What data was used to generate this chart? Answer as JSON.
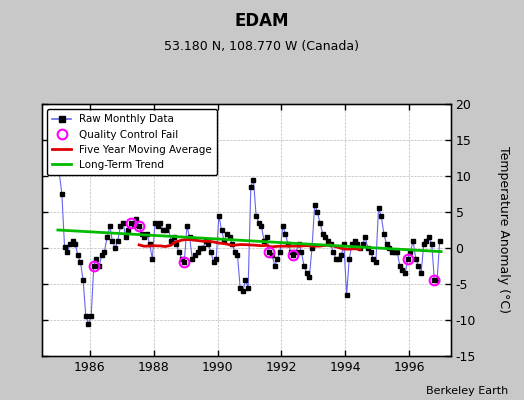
{
  "title": "EDAM",
  "subtitle": "53.180 N, 108.770 W (Canada)",
  "watermark": "Berkeley Earth",
  "ylabel": "Temperature Anomaly (°C)",
  "ylim": [
    -15,
    20
  ],
  "yticks": [
    -15,
    -10,
    -5,
    0,
    5,
    10,
    15,
    20
  ],
  "xlim": [
    1984.5,
    1997.3
  ],
  "xticks": [
    1986,
    1988,
    1990,
    1992,
    1994,
    1996
  ],
  "bg_color": "#c8c8c8",
  "plot_bg_color": "#ffffff",
  "raw_line_color": "#6666ee",
  "raw_dot_color": "#000000",
  "moving_avg_color": "#dd0000",
  "trend_color": "#00bb00",
  "qc_fail_color": "#ff00ff",
  "raw_monthly_data": [
    [
      1985.042,
      10.5
    ],
    [
      1985.125,
      7.5
    ],
    [
      1985.208,
      0.2
    ],
    [
      1985.292,
      -0.5
    ],
    [
      1985.375,
      0.5
    ],
    [
      1985.458,
      1.0
    ],
    [
      1985.542,
      0.5
    ],
    [
      1985.625,
      -1.0
    ],
    [
      1985.708,
      -2.0
    ],
    [
      1985.792,
      -4.5
    ],
    [
      1985.875,
      -9.5
    ],
    [
      1985.958,
      -10.5
    ],
    [
      1986.042,
      -9.5
    ],
    [
      1986.125,
      -2.5
    ],
    [
      1986.208,
      -1.5
    ],
    [
      1986.292,
      -2.5
    ],
    [
      1986.375,
      -1.0
    ],
    [
      1986.458,
      -0.5
    ],
    [
      1986.542,
      1.5
    ],
    [
      1986.625,
      3.0
    ],
    [
      1986.708,
      1.0
    ],
    [
      1986.792,
      0.0
    ],
    [
      1986.875,
      1.0
    ],
    [
      1986.958,
      3.0
    ],
    [
      1987.042,
      3.5
    ],
    [
      1987.125,
      1.5
    ],
    [
      1987.208,
      2.5
    ],
    [
      1987.292,
      3.5
    ],
    [
      1987.375,
      3.2
    ],
    [
      1987.458,
      4.0
    ],
    [
      1987.542,
      3.0
    ],
    [
      1987.625,
      2.0
    ],
    [
      1987.708,
      1.5
    ],
    [
      1987.792,
      2.0
    ],
    [
      1987.875,
      0.5
    ],
    [
      1987.958,
      -1.5
    ],
    [
      1988.042,
      3.5
    ],
    [
      1988.125,
      3.0
    ],
    [
      1988.208,
      3.5
    ],
    [
      1988.292,
      2.5
    ],
    [
      1988.375,
      2.5
    ],
    [
      1988.458,
      3.0
    ],
    [
      1988.542,
      1.0
    ],
    [
      1988.625,
      1.5
    ],
    [
      1988.708,
      0.5
    ],
    [
      1988.792,
      -0.5
    ],
    [
      1988.875,
      -1.5
    ],
    [
      1988.958,
      -2.0
    ],
    [
      1989.042,
      3.0
    ],
    [
      1989.125,
      1.5
    ],
    [
      1989.208,
      -1.5
    ],
    [
      1989.292,
      -1.0
    ],
    [
      1989.375,
      -0.5
    ],
    [
      1989.458,
      0.0
    ],
    [
      1989.542,
      0.0
    ],
    [
      1989.625,
      1.0
    ],
    [
      1989.708,
      0.5
    ],
    [
      1989.792,
      -0.5
    ],
    [
      1989.875,
      -2.0
    ],
    [
      1989.958,
      -1.5
    ],
    [
      1990.042,
      4.5
    ],
    [
      1990.125,
      2.5
    ],
    [
      1990.208,
      1.0
    ],
    [
      1990.292,
      2.0
    ],
    [
      1990.375,
      1.5
    ],
    [
      1990.458,
      0.5
    ],
    [
      1990.542,
      -0.5
    ],
    [
      1990.625,
      -1.0
    ],
    [
      1990.708,
      -5.5
    ],
    [
      1990.792,
      -6.0
    ],
    [
      1990.875,
      -4.5
    ],
    [
      1990.958,
      -5.5
    ],
    [
      1991.042,
      8.5
    ],
    [
      1991.125,
      9.5
    ],
    [
      1991.208,
      4.5
    ],
    [
      1991.292,
      3.5
    ],
    [
      1991.375,
      3.0
    ],
    [
      1991.458,
      1.0
    ],
    [
      1991.542,
      1.5
    ],
    [
      1991.625,
      -0.5
    ],
    [
      1991.708,
      -1.0
    ],
    [
      1991.792,
      -2.5
    ],
    [
      1991.875,
      -1.5
    ],
    [
      1991.958,
      -0.5
    ],
    [
      1992.042,
      3.0
    ],
    [
      1992.125,
      2.0
    ],
    [
      1992.208,
      0.5
    ],
    [
      1992.292,
      -0.5
    ],
    [
      1992.375,
      -1.0
    ],
    [
      1992.458,
      -0.5
    ],
    [
      1992.542,
      0.5
    ],
    [
      1992.625,
      -0.5
    ],
    [
      1992.708,
      -2.5
    ],
    [
      1992.792,
      -3.5
    ],
    [
      1992.875,
      -4.0
    ],
    [
      1992.958,
      0.0
    ],
    [
      1993.042,
      6.0
    ],
    [
      1993.125,
      5.0
    ],
    [
      1993.208,
      3.5
    ],
    [
      1993.292,
      2.0
    ],
    [
      1993.375,
      1.5
    ],
    [
      1993.458,
      1.0
    ],
    [
      1993.542,
      0.5
    ],
    [
      1993.625,
      -0.5
    ],
    [
      1993.708,
      -1.5
    ],
    [
      1993.792,
      -1.5
    ],
    [
      1993.875,
      -1.0
    ],
    [
      1993.958,
      0.5
    ],
    [
      1994.042,
      -6.5
    ],
    [
      1994.125,
      -1.5
    ],
    [
      1994.208,
      0.5
    ],
    [
      1994.292,
      1.0
    ],
    [
      1994.375,
      0.5
    ],
    [
      1994.458,
      0.0
    ],
    [
      1994.542,
      0.5
    ],
    [
      1994.625,
      1.5
    ],
    [
      1994.708,
      0.0
    ],
    [
      1994.792,
      -0.5
    ],
    [
      1994.875,
      -1.5
    ],
    [
      1994.958,
      -2.0
    ],
    [
      1995.042,
      5.5
    ],
    [
      1995.125,
      4.5
    ],
    [
      1995.208,
      2.0
    ],
    [
      1995.292,
      0.5
    ],
    [
      1995.375,
      0.0
    ],
    [
      1995.458,
      -0.5
    ],
    [
      1995.542,
      -0.5
    ],
    [
      1995.625,
      -0.5
    ],
    [
      1995.708,
      -2.5
    ],
    [
      1995.792,
      -3.0
    ],
    [
      1995.875,
      -3.5
    ],
    [
      1995.958,
      -1.5
    ],
    [
      1996.042,
      -0.5
    ],
    [
      1996.125,
      1.0
    ],
    [
      1996.208,
      -1.5
    ],
    [
      1996.292,
      -2.5
    ],
    [
      1996.375,
      -3.5
    ],
    [
      1996.458,
      0.5
    ],
    [
      1996.542,
      1.0
    ],
    [
      1996.625,
      1.5
    ],
    [
      1996.708,
      0.5
    ],
    [
      1996.792,
      -4.5
    ],
    [
      1996.875,
      -4.5
    ],
    [
      1996.958,
      1.0
    ]
  ],
  "qc_fail_points": [
    [
      1986.125,
      -2.5
    ],
    [
      1987.292,
      3.5
    ],
    [
      1987.542,
      3.0
    ],
    [
      1988.958,
      -2.0
    ],
    [
      1991.625,
      -0.5
    ],
    [
      1992.375,
      -1.0
    ],
    [
      1995.958,
      -1.5
    ],
    [
      1996.792,
      -4.5
    ]
  ],
  "trend_x": [
    1985.0,
    1997.0
  ],
  "trend_y": [
    2.5,
    -0.5
  ]
}
